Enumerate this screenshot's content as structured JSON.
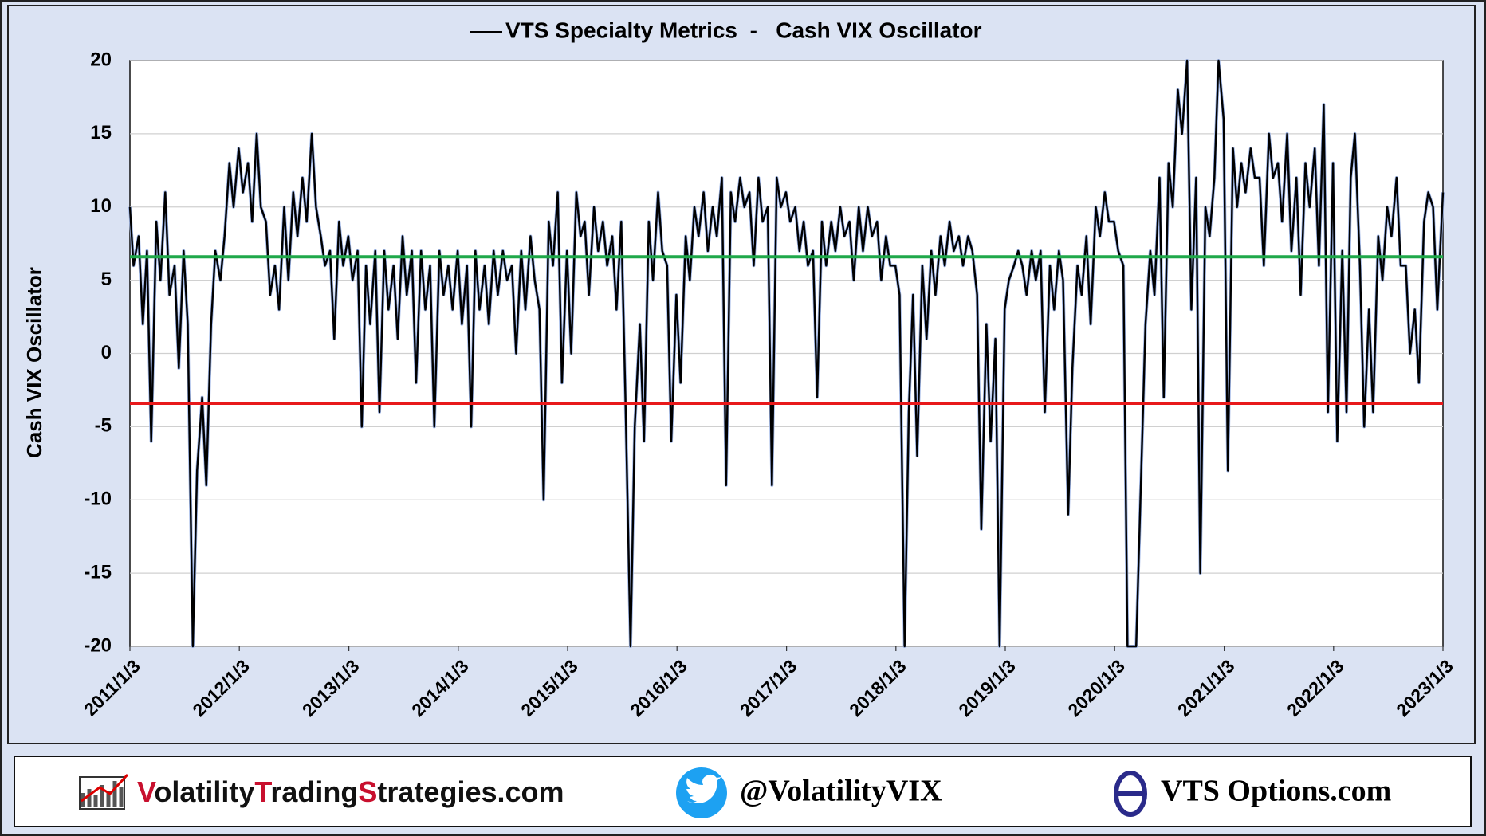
{
  "chart_data": {
    "type": "line",
    "series": [
      {
        "name": "VTS Specialty Metrics  -   Cash VIX Oscillator",
        "color": "#000000",
        "values": [
          10,
          6,
          8,
          2,
          7,
          -6,
          9,
          5,
          11,
          4,
          6,
          -1,
          7,
          2,
          -20,
          -8,
          -3,
          -9,
          2,
          7,
          5,
          8,
          13,
          10,
          14,
          11,
          13,
          9,
          15,
          10,
          9,
          4,
          6,
          3,
          10,
          5,
          11,
          8,
          12,
          9,
          15,
          10,
          8,
          6,
          7,
          1,
          9,
          6,
          8,
          5,
          7,
          -5,
          6,
          2,
          7,
          -4,
          7,
          3,
          6,
          1,
          8,
          4,
          7,
          -2,
          7,
          3,
          6,
          -5,
          7,
          4,
          6,
          3,
          7,
          2,
          6,
          -5,
          7,
          3,
          6,
          2,
          7,
          4,
          7,
          5,
          6,
          0,
          7,
          3,
          8,
          5,
          3,
          -10,
          9,
          6,
          11,
          -2,
          7,
          0,
          11,
          8,
          9,
          4,
          10,
          7,
          9,
          6,
          8,
          3,
          9,
          -3,
          -20,
          -5,
          2,
          -6,
          9,
          5,
          11,
          7,
          6,
          -6,
          4,
          -2,
          8,
          5,
          10,
          8,
          11,
          7,
          10,
          8,
          12,
          -9,
          11,
          9,
          12,
          10,
          11,
          6,
          12,
          9,
          10,
          -9,
          12,
          10,
          11,
          9,
          10,
          7,
          9,
          6,
          7,
          -3,
          9,
          6,
          9,
          7,
          10,
          8,
          9,
          5,
          10,
          7,
          10,
          8,
          9,
          5,
          8,
          6,
          6,
          4,
          -20,
          -4,
          4,
          -7,
          6,
          1,
          7,
          4,
          8,
          6,
          9,
          7,
          8,
          6,
          8,
          7,
          4,
          -12,
          2,
          -6,
          1,
          -20,
          3,
          5,
          6,
          7,
          6,
          4,
          7,
          5,
          7,
          -4,
          6,
          3,
          7,
          5,
          -11,
          -1,
          6,
          4,
          8,
          2,
          10,
          8,
          11,
          9,
          9,
          7,
          6,
          -20,
          -20,
          -20,
          -8,
          2,
          7,
          4,
          12,
          -3,
          13,
          10,
          18,
          15,
          20,
          3,
          12,
          -15,
          10,
          8,
          12,
          20,
          16,
          -8,
          14,
          10,
          13,
          11,
          14,
          12,
          12,
          6,
          15,
          12,
          13,
          9,
          15,
          7,
          12,
          4,
          13,
          10,
          14,
          6,
          17,
          -4,
          13,
          -6,
          7,
          -4,
          12,
          15,
          6,
          -5,
          3,
          -4,
          8,
          5,
          10,
          8,
          12,
          6,
          6,
          0,
          3,
          -2,
          9,
          11,
          10,
          3,
          11
        ]
      }
    ],
    "x": [
      "2011/1/3",
      "2011/1/15",
      "2011/2/1",
      "2011/2/15",
      "2011/3/1",
      "2011/3/15",
      "2011/4/1",
      "2011/4/15",
      "2011/5/1",
      "2011/5/15",
      "2011/6/1",
      "2011/6/15",
      "2011/7/1",
      "2011/7/15",
      "2011/8/1",
      "2011/8/15",
      "2011/9/1",
      "2011/9/15",
      "2011/10/1",
      "2011/10/15",
      "2011/11/1",
      "2011/11/15",
      "2011/12/1",
      "2011/12/15",
      "2012/1/1",
      "2012/1/15",
      "2012/2/1",
      "2012/2/15",
      "2012/3/1",
      "2012/3/15",
      "2012/4/1",
      "2012/4/15",
      "2012/5/1",
      "2012/5/15",
      "2012/6/1",
      "2012/6/15",
      "2012/7/1",
      "2012/7/15",
      "2012/8/1",
      "2012/8/15",
      "2012/9/1",
      "2012/9/15",
      "2012/10/1",
      "2012/10/15",
      "2012/11/1",
      "2012/11/15",
      "2012/12/1",
      "2012/12/15",
      "2013/1/1",
      "2013/1/15",
      "2013/2/1",
      "2013/2/15",
      "2013/3/1",
      "2013/3/15",
      "2013/4/1",
      "2013/4/15",
      "2013/5/1",
      "2013/5/15",
      "2013/6/1",
      "2013/6/15",
      "2013/7/1",
      "2013/7/15",
      "2013/8/1",
      "2013/8/15",
      "2013/9/1",
      "2013/9/15",
      "2013/10/1",
      "2013/10/15",
      "2013/11/1",
      "2013/11/15",
      "2013/12/1",
      "2013/12/15",
      "2014/1/1",
      "2014/1/15",
      "2014/2/1",
      "2014/2/15",
      "2014/3/1",
      "2014/3/15",
      "2014/4/1",
      "2014/4/15",
      "2014/5/1",
      "2014/5/15",
      "2014/6/1",
      "2014/6/15",
      "2014/7/1",
      "2014/7/15",
      "2014/8/1",
      "2014/8/15",
      "2014/9/1",
      "2014/9/15",
      "2014/10/1",
      "2014/10/15",
      "2014/11/1",
      "2014/11/15",
      "2014/12/1",
      "2014/12/15",
      "2015/1/1",
      "2015/1/15",
      "2015/2/1",
      "2015/2/15",
      "2015/3/1",
      "2015/3/15",
      "2015/4/1",
      "2015/4/15",
      "2015/5/1",
      "2015/5/15",
      "2015/6/1",
      "2015/6/15",
      "2015/7/1",
      "2015/7/15",
      "2015/8/1",
      "2015/8/15",
      "2015/9/1",
      "2015/9/15",
      "2015/10/1",
      "2015/10/15",
      "2015/11/1",
      "2015/11/15",
      "2015/12/1",
      "2015/12/15",
      "2016/1/1",
      "2016/1/15",
      "2016/2/1",
      "2016/2/15",
      "2016/3/1",
      "2016/3/15",
      "2016/4/1",
      "2016/4/15",
      "2016/5/1",
      "2016/5/15",
      "2016/6/1",
      "2016/6/15",
      "2016/7/1",
      "2016/7/15",
      "2016/8/1",
      "2016/8/15",
      "2016/9/1",
      "2016/9/15",
      "2016/10/1",
      "2016/10/15",
      "2016/11/1",
      "2016/11/15",
      "2016/12/1",
      "2016/12/15",
      "2017/1/1",
      "2017/1/15",
      "2017/2/1",
      "2017/2/15",
      "2017/3/1",
      "2017/3/15",
      "2017/4/1",
      "2017/4/15",
      "2017/5/1",
      "2017/5/15",
      "2017/6/1",
      "2017/6/15",
      "2017/7/1",
      "2017/7/15",
      "2017/8/1",
      "2017/8/15",
      "2017/9/1",
      "2017/9/15",
      "2017/10/1",
      "2017/10/15",
      "2017/11/1",
      "2017/11/15",
      "2017/12/1",
      "2017/12/15",
      "2018/1/1",
      "2018/1/15",
      "2018/2/1",
      "2018/2/15",
      "2018/3/1",
      "2018/3/15",
      "2018/4/1",
      "2018/4/15",
      "2018/5/1",
      "2018/5/15",
      "2018/6/1",
      "2018/6/15",
      "2018/7/1",
      "2018/7/15",
      "2018/8/1",
      "2018/8/15",
      "2018/9/1",
      "2018/9/15",
      "2018/10/1",
      "2018/10/15",
      "2018/11/1",
      "2018/11/15",
      "2018/12/1",
      "2018/12/15",
      "2019/1/1",
      "2019/1/15",
      "2019/2/1",
      "2019/2/15",
      "2019/3/1",
      "2019/3/15",
      "2019/4/1",
      "2019/4/15",
      "2019/5/1",
      "2019/5/15",
      "2019/6/1",
      "2019/6/15",
      "2019/7/1",
      "2019/7/15",
      "2019/8/1",
      "2019/8/15",
      "2019/9/1",
      "2019/9/15",
      "2019/10/1",
      "2019/10/15",
      "2019/11/1",
      "2019/11/15",
      "2019/12/1",
      "2019/12/15",
      "2020/1/1",
      "2020/1/15",
      "2020/2/1",
      "2020/2/15",
      "2020/3/1",
      "2020/3/15",
      "2020/4/1",
      "2020/4/15",
      "2020/5/1",
      "2020/5/15",
      "2020/6/1",
      "2020/6/15",
      "2020/7/1",
      "2020/7/15",
      "2020/8/1",
      "2020/8/15",
      "2020/9/1",
      "2020/9/15",
      "2020/10/1",
      "2020/10/15",
      "2020/11/1",
      "2020/11/15",
      "2020/12/1",
      "2020/12/15",
      "2021/1/1",
      "2021/1/15",
      "2021/2/1",
      "2021/2/15",
      "2021/3/1",
      "2021/3/15",
      "2021/4/1",
      "2021/4/15",
      "2021/5/1",
      "2021/5/15",
      "2021/6/1",
      "2021/6/15",
      "2021/7/1",
      "2021/7/15",
      "2021/8/1",
      "2021/8/15",
      "2021/9/1",
      "2021/9/15",
      "2021/10/1",
      "2021/10/15",
      "2021/11/1",
      "2021/11/15",
      "2021/12/1",
      "2021/12/15",
      "2022/1/1",
      "2022/1/15",
      "2022/2/1",
      "2022/2/15",
      "2022/3/1",
      "2022/3/15",
      "2022/4/1",
      "2022/4/15",
      "2022/5/1",
      "2022/5/15",
      "2022/6/1",
      "2022/6/15",
      "2022/7/1",
      "2022/7/15",
      "2022/8/1",
      "2022/8/15",
      "2022/9/1",
      "2022/9/15",
      "2022/10/1",
      "2022/10/15",
      "2022/11/1",
      "2022/11/15",
      "2022/12/1",
      "2022/12/15",
      "2023/1/3"
    ],
    "ylabel": "Cash VIX Oscillator",
    "xlim": [
      "2011/1/3",
      "2023/1/3"
    ],
    "xticks": [
      "2011/1/3",
      "2012/1/3",
      "2013/1/3",
      "2014/1/3",
      "2015/1/3",
      "2016/1/3",
      "2017/1/3",
      "2018/1/3",
      "2019/1/3",
      "2020/1/3",
      "2021/1/3",
      "2022/1/3",
      "2023/1/3"
    ],
    "ylim": [
      -20,
      20
    ],
    "yticks": [
      -20,
      -15,
      -10,
      -5,
      0,
      5,
      10,
      15,
      20
    ],
    "grid": true,
    "reference_lines": [
      {
        "value": 6.6,
        "color": "#1fa84a"
      },
      {
        "value": -3.4,
        "color": "#e8191b"
      }
    ]
  },
  "footer": {
    "site_parts": [
      "V",
      "olatility",
      "T",
      "rading",
      "S",
      "trategies.com"
    ],
    "twitter": "@VolatilityVIX",
    "options": "VTS Options.com"
  }
}
